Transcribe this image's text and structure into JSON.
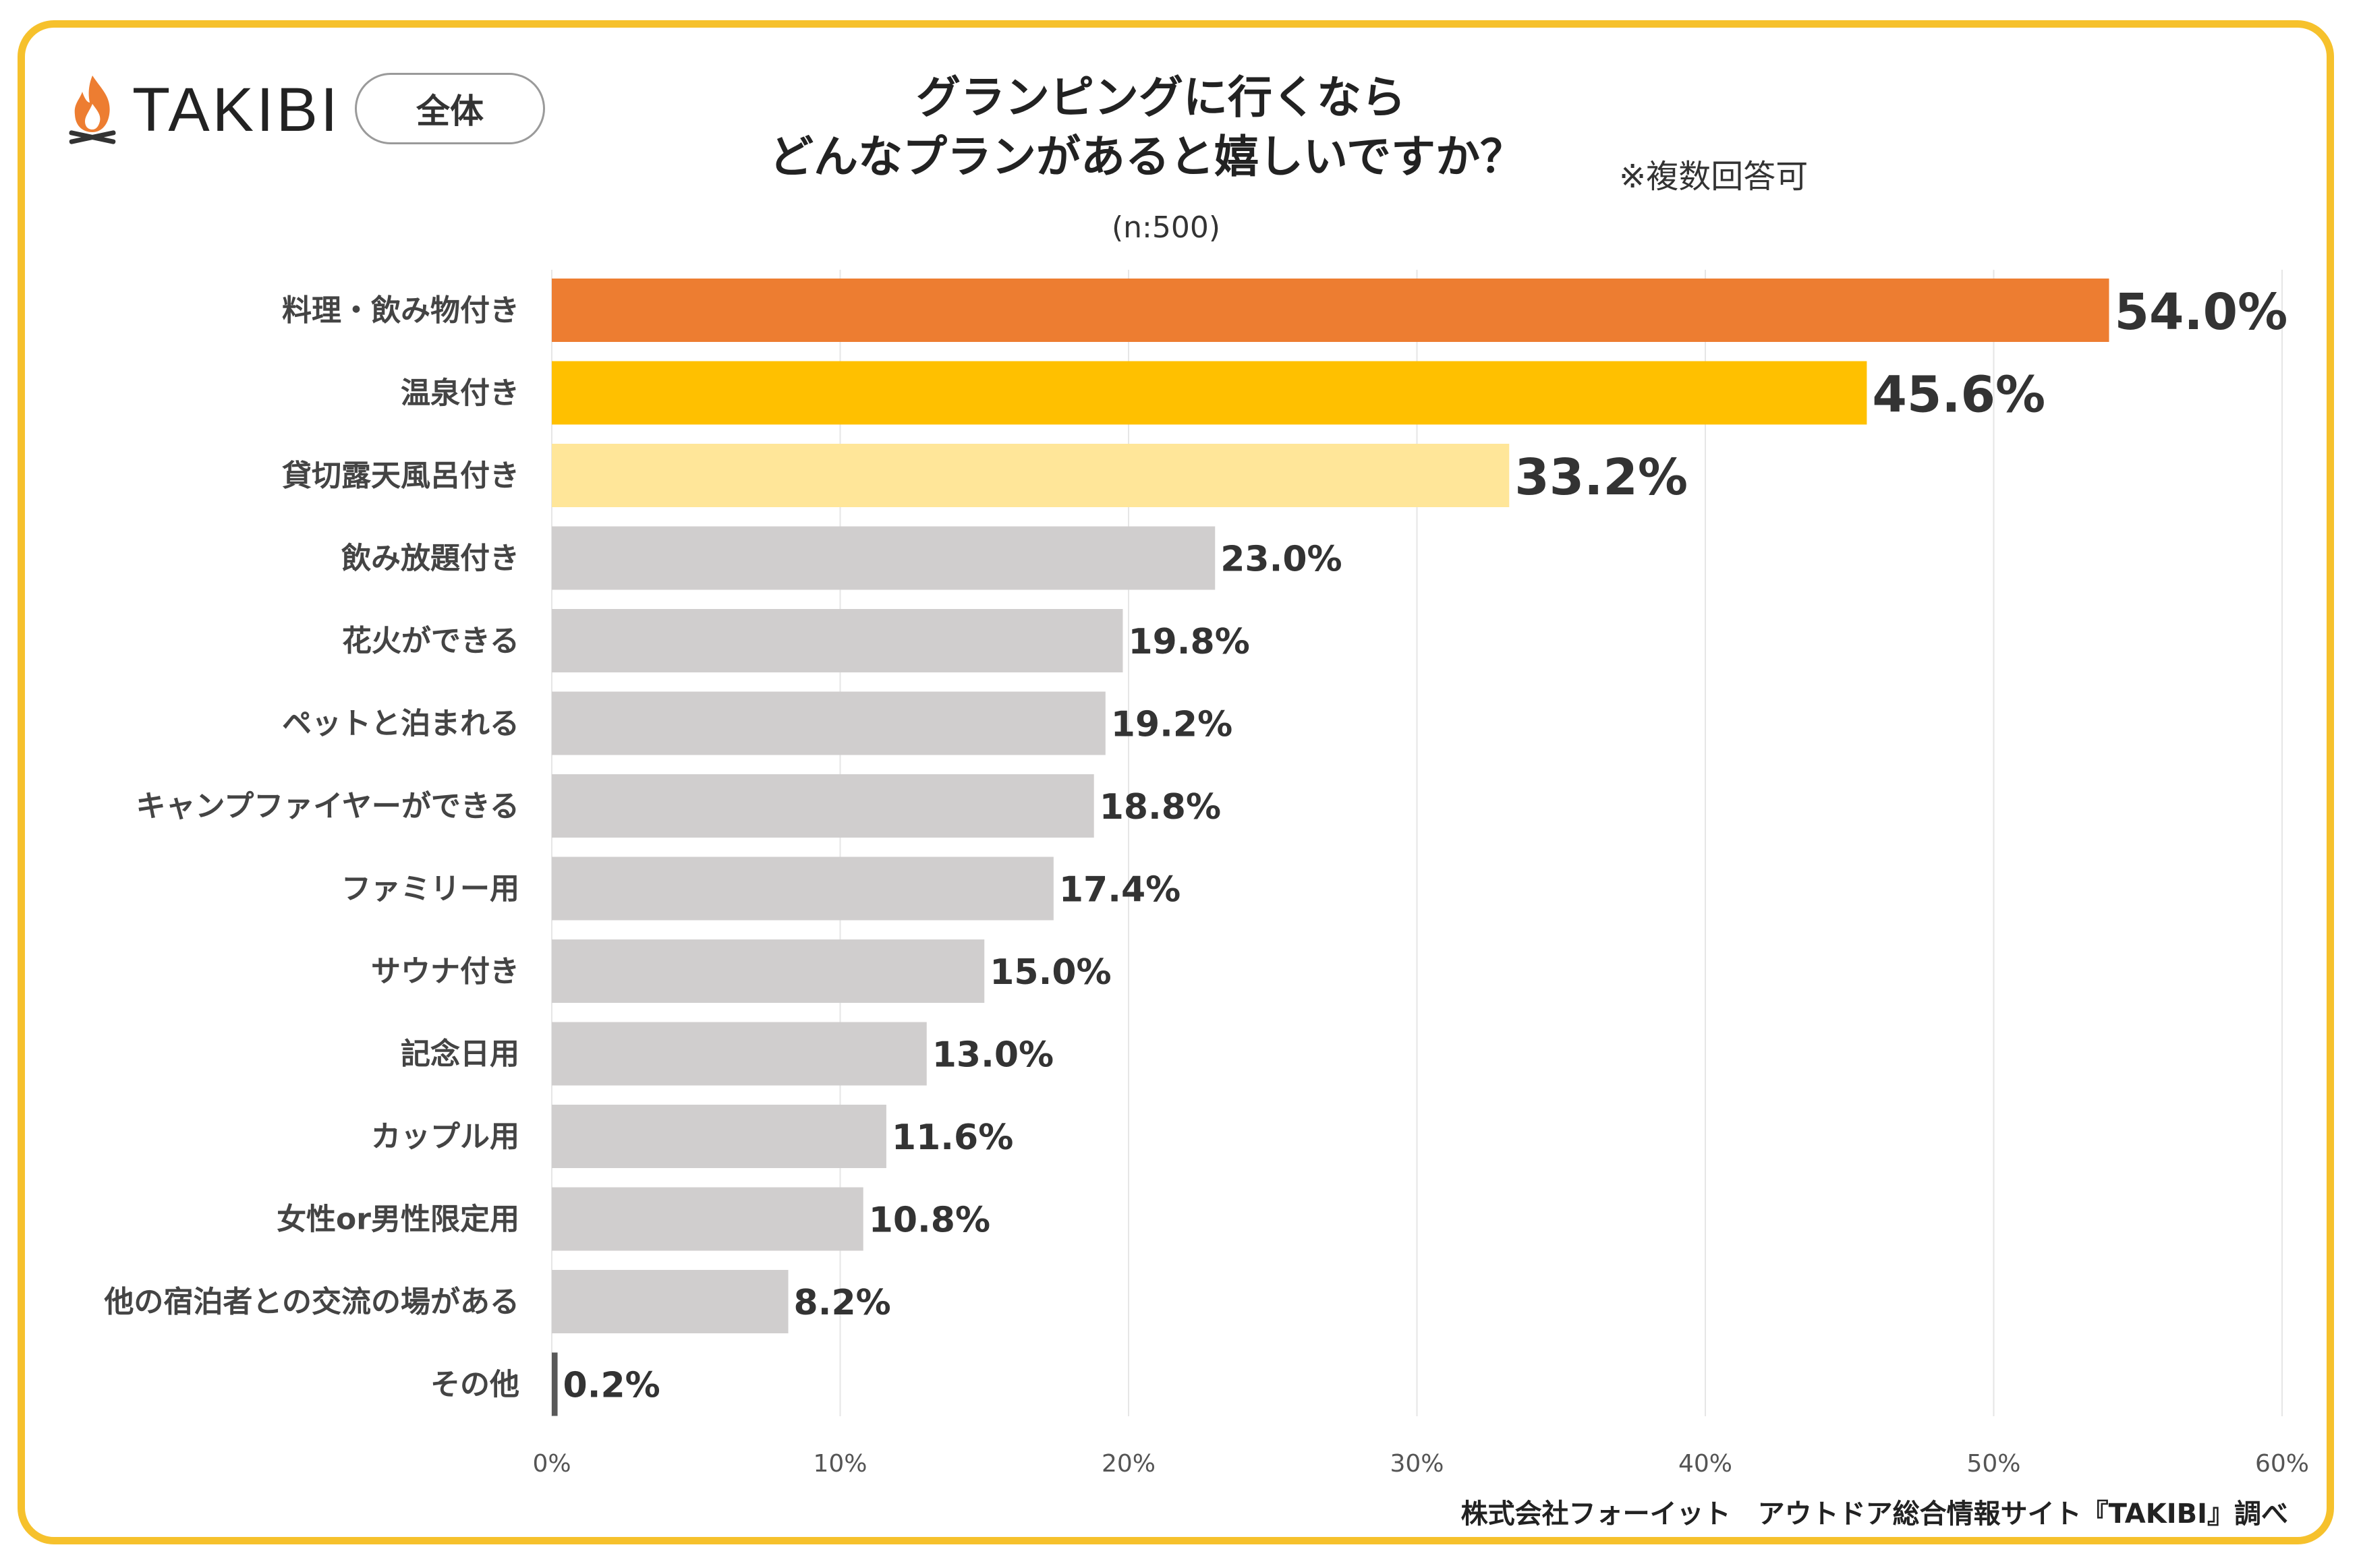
{
  "brand": {
    "name": "TAKIBI",
    "logo_icon": "campfire-icon",
    "accent": "#F6C12C"
  },
  "segment": {
    "label": "全体"
  },
  "header": {
    "title_line1": "グランピングに行くなら",
    "title_line2": "どんなプランがあると嬉しいですか？",
    "note": "※複数回答可",
    "sample": "(n:500)"
  },
  "footer": {
    "credit": "株式会社フォーイット　アウトドア総合情報サイト『TAKIBI』調べ"
  },
  "chart_data": {
    "type": "bar",
    "orientation": "horizontal",
    "title": "グランピングに行くなら どんなプランがあると嬉しいですか？",
    "xlabel": "",
    "ylabel": "",
    "xlim": [
      0,
      60
    ],
    "grid": true,
    "categories": [
      "料理・飲み物付き",
      "温泉付き",
      "貸切露天風呂付き",
      "飲み放題付き",
      "花火ができる",
      "ペットと泊まれる",
      "キャンプファイヤーができる",
      "ファミリー用",
      "サウナ付き",
      "記念日用",
      "カップル用",
      "女性or男性限定用",
      "他の宿泊者との交流の場がある",
      "その他"
    ],
    "values": [
      54.0,
      45.6,
      33.2,
      23.0,
      19.8,
      19.2,
      18.8,
      17.4,
      15.0,
      13.0,
      11.6,
      10.8,
      8.2,
      0.2
    ],
    "value_labels": [
      "54.0%",
      "45.6%",
      "33.2%",
      "23.0%",
      "19.8%",
      "19.2%",
      "18.8%",
      "17.4%",
      "15.0%",
      "13.0%",
      "11.6%",
      "10.8%",
      "8.2%",
      "0.2%"
    ],
    "bar_colors": [
      "#ED7D31",
      "#FFC000",
      "#FFE699",
      "#D0CECE",
      "#D0CECE",
      "#D0CECE",
      "#D0CECE",
      "#D0CECE",
      "#D0CECE",
      "#D0CECE",
      "#D0CECE",
      "#D0CECE",
      "#D0CECE",
      "#595959"
    ],
    "label_colors": [
      "#ED7D31",
      "#404040",
      "#404040",
      "#404040",
      "#404040",
      "#404040",
      "#404040",
      "#404040",
      "#404040",
      "#404040",
      "#404040",
      "#404040",
      "#404040",
      "#404040"
    ],
    "x_ticks": [
      0,
      10,
      20,
      30,
      40,
      50,
      60
    ],
    "x_tick_labels": [
      "0%",
      "10%",
      "20%",
      "30%",
      "40%",
      "50%",
      "60%"
    ]
  }
}
